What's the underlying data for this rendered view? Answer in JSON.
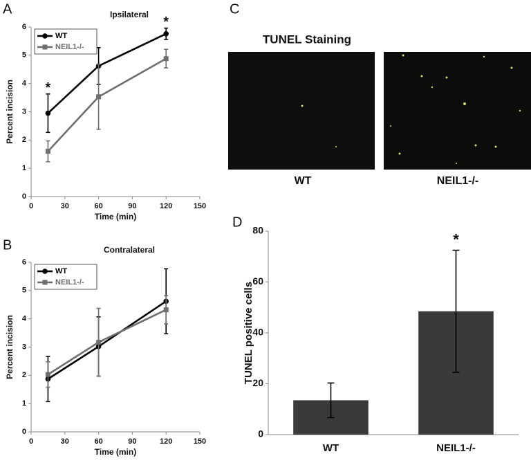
{
  "chart_data": [
    {
      "type": "line",
      "panel_label": "A",
      "title": "Ipsilateral",
      "xlabel": "Time (min)",
      "ylabel": "Percent incision",
      "x": [
        15,
        60,
        120
      ],
      "xlim": [
        0,
        150
      ],
      "xticks": [
        0,
        30,
        60,
        90,
        120,
        150
      ],
      "ylim": [
        0,
        6
      ],
      "yticks": [
        0,
        1,
        2,
        3,
        4,
        5,
        6
      ],
      "legend": "upper left",
      "series": [
        {
          "name": "WT",
          "color": "#000000",
          "marker": "circle",
          "values": [
            2.95,
            4.62,
            5.76
          ],
          "errors": [
            0.68,
            0.65,
            0.2
          ]
        },
        {
          "name": "NEIL1-/-",
          "color": "#6e6e6e",
          "marker": "square",
          "values": [
            1.6,
            3.53,
            4.88
          ],
          "errors": [
            0.37,
            1.15,
            0.33
          ]
        }
      ],
      "annotations": [
        {
          "x": 15,
          "text": "*"
        },
        {
          "x": 120,
          "text": "*"
        }
      ]
    },
    {
      "type": "line",
      "panel_label": "B",
      "title": "Contralateral",
      "xlabel": "Time (min)",
      "ylabel": "Percent incision",
      "x": [
        15,
        60,
        120
      ],
      "xlim": [
        0,
        150
      ],
      "xticks": [
        0,
        30,
        60,
        90,
        120,
        150
      ],
      "ylim": [
        0,
        6
      ],
      "yticks": [
        0,
        1,
        2,
        3,
        4,
        5,
        6
      ],
      "legend": "upper left",
      "series": [
        {
          "name": "WT",
          "color": "#000000",
          "marker": "circle",
          "values": [
            1.87,
            3.02,
            4.62
          ],
          "errors": [
            0.8,
            1.05,
            1.15
          ]
        },
        {
          "name": "NEIL1-/-",
          "color": "#6e6e6e",
          "marker": "square",
          "values": [
            2.03,
            3.17,
            4.32
          ],
          "errors": [
            0.45,
            1.2,
            0.5
          ]
        }
      ],
      "annotations": []
    },
    {
      "type": "bar",
      "panel_label": "D",
      "ylabel": "TUNEL positive cells",
      "color": "#3a3a3a",
      "categories": [
        "WT",
        "NEIL1-/-"
      ],
      "values": [
        13.5,
        48.5
      ],
      "errors": [
        6.8,
        24
      ],
      "ylim": [
        0,
        80
      ],
      "yticks": [
        0,
        20,
        40,
        60,
        80
      ],
      "annotations": [
        {
          "x": "NEIL1-/-",
          "text": "*"
        }
      ]
    }
  ],
  "image_panel": {
    "panel_label": "C",
    "title": "TUNEL Staining",
    "captions": [
      "WT",
      "NEIL1-/-"
    ]
  }
}
